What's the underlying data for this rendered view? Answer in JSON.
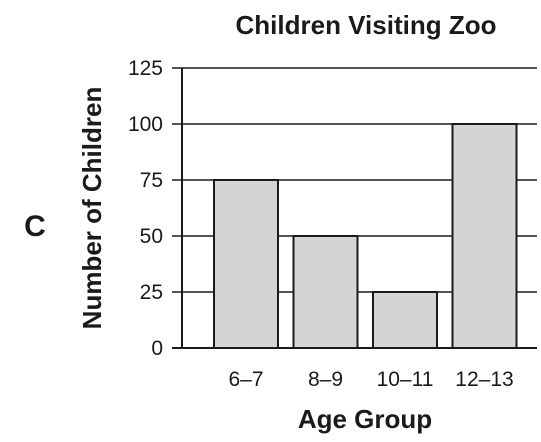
{
  "panel_label": "C",
  "chart_data": {
    "type": "bar",
    "title": "Children Visiting Zoo",
    "xlabel": "Age Group",
    "ylabel": "Number of Children",
    "categories": [
      "6–7",
      "8–9",
      "10–11",
      "12–13"
    ],
    "values": [
      75,
      50,
      25,
      100
    ],
    "ylim": [
      0,
      125
    ],
    "yticks": [
      0,
      25,
      50,
      75,
      100,
      125
    ],
    "grid": true,
    "bar_color": "#d3d4d6",
    "bar_edge_color": "#1a1a1a"
  }
}
